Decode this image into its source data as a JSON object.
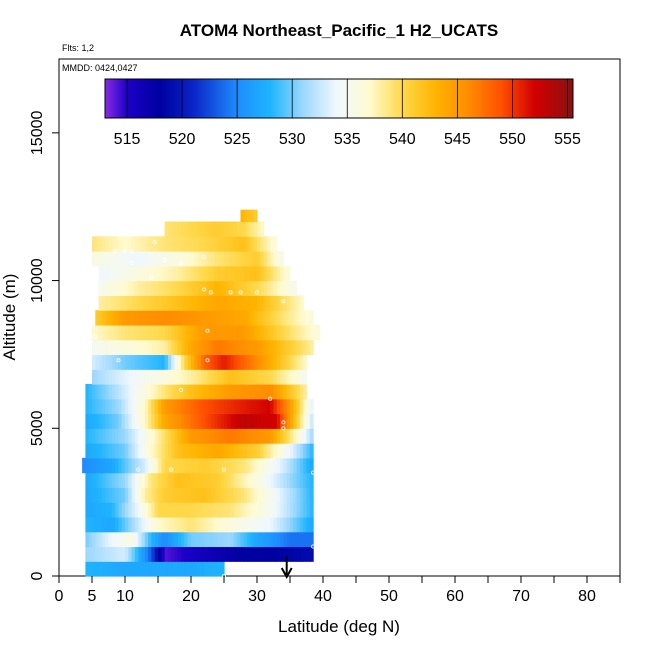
{
  "chart_data": {
    "type": "heatmap",
    "title": "ATOM4 Northeast_Pacific_1 H2_UCATS",
    "flights_text": "Flts: 1,2",
    "mmdd_text": "MMDD: 0424,0427",
    "xlabel": "Latitude (deg N)",
    "ylabel": "Altitude (m)",
    "xlim": [
      0,
      85
    ],
    "ylim": [
      0,
      17500
    ],
    "x_ticks": [
      0,
      5,
      10,
      20,
      30,
      40,
      50,
      60,
      70,
      80
    ],
    "x_minor_ticks": [
      15,
      25,
      35,
      45,
      55,
      65,
      75,
      85
    ],
    "y_ticks": [
      0,
      5000,
      10000,
      15000
    ],
    "colorbar": {
      "min": 513,
      "max": 555.5,
      "ticks": [
        515,
        520,
        525,
        530,
        535,
        540,
        545,
        550,
        555
      ],
      "stops": [
        {
          "v": 513,
          "c": "#8a2be2"
        },
        {
          "v": 515,
          "c": "#1c00c8"
        },
        {
          "v": 518,
          "c": "#0000a0"
        },
        {
          "v": 521,
          "c": "#0a24c8"
        },
        {
          "v": 525,
          "c": "#1e8cff"
        },
        {
          "v": 528,
          "c": "#1eb4ff"
        },
        {
          "v": 531,
          "c": "#9cd8ff"
        },
        {
          "v": 534,
          "c": "#f0f8ff"
        },
        {
          "v": 537,
          "c": "#fffbd0"
        },
        {
          "v": 540,
          "c": "#ffd84a"
        },
        {
          "v": 543,
          "c": "#ffb400"
        },
        {
          "v": 546,
          "c": "#ff8c00"
        },
        {
          "v": 549,
          "c": "#ff5000"
        },
        {
          "v": 552,
          "c": "#d20000"
        },
        {
          "v": 555.5,
          "c": "#8b1010"
        }
      ]
    },
    "arrow_marker": {
      "latitude": 34.5
    },
    "layers": [
      {
        "alt": [
          0,
          500
        ],
        "lat": [
          4,
          25
        ],
        "values": [
          [
            4,
            528
          ],
          [
            10,
            527
          ],
          [
            15,
            527
          ],
          [
            20,
            527
          ],
          [
            25,
            528
          ]
        ]
      },
      {
        "alt": [
          500,
          1000
        ],
        "lat": [
          4,
          38.5
        ],
        "values": [
          [
            4,
            531
          ],
          [
            10,
            533
          ],
          [
            14,
            523
          ],
          [
            16,
            514
          ],
          [
            22,
            516
          ],
          [
            28,
            518
          ],
          [
            33,
            518
          ],
          [
            38.5,
            519
          ]
        ]
      },
      {
        "alt": [
          1000,
          1500
        ],
        "lat": [
          4,
          38.5
        ],
        "values": [
          [
            4,
            530
          ],
          [
            8,
            534
          ],
          [
            11,
            536
          ],
          [
            14,
            528
          ],
          [
            16,
            525
          ],
          [
            20,
            530
          ],
          [
            26,
            531
          ],
          [
            30,
            527
          ],
          [
            35,
            524
          ],
          [
            38.5,
            524
          ]
        ]
      },
      {
        "alt": [
          1500,
          2000
        ],
        "lat": [
          4,
          38.5
        ],
        "values": [
          [
            4,
            528
          ],
          [
            8,
            527
          ],
          [
            11,
            531
          ],
          [
            15,
            537
          ],
          [
            20,
            539
          ],
          [
            26,
            536
          ],
          [
            32,
            534
          ],
          [
            38.5,
            527
          ]
        ]
      },
      {
        "alt": [
          2000,
          2500
        ],
        "lat": [
          4,
          38.5
        ],
        "values": [
          [
            4,
            527
          ],
          [
            8,
            528
          ],
          [
            12,
            534
          ],
          [
            15,
            540
          ],
          [
            20,
            540
          ],
          [
            26,
            539
          ],
          [
            32,
            535
          ],
          [
            38.5,
            528
          ]
        ]
      },
      {
        "alt": [
          2500,
          3000
        ],
        "lat": [
          4,
          38.5
        ],
        "values": [
          [
            4,
            527
          ],
          [
            10,
            530
          ],
          [
            13,
            538
          ],
          [
            16,
            541
          ],
          [
            22,
            542
          ],
          [
            28,
            539
          ],
          [
            34,
            533
          ],
          [
            38.5,
            528
          ]
        ]
      },
      {
        "alt": [
          3000,
          3500
        ],
        "lat": [
          4,
          38.5
        ],
        "values": [
          [
            4,
            527
          ],
          [
            10,
            531
          ],
          [
            14,
            539
          ],
          [
            18,
            542
          ],
          [
            24,
            541
          ],
          [
            30,
            536
          ],
          [
            35,
            531
          ],
          [
            38.5,
            528
          ]
        ]
      },
      {
        "alt": [
          3500,
          4000
        ],
        "lat": [
          3.5,
          38.5
        ],
        "values": [
          [
            3.5,
            525
          ],
          [
            8,
            527
          ],
          [
            13,
            533
          ],
          [
            16,
            540
          ],
          [
            22,
            541
          ],
          [
            28,
            539
          ],
          [
            34,
            533
          ],
          [
            38.5,
            527
          ]
        ]
      },
      {
        "alt": [
          4000,
          4500
        ],
        "lat": [
          4,
          38.5
        ],
        "values": [
          [
            4,
            527
          ],
          [
            10,
            530
          ],
          [
            14,
            537
          ],
          [
            18,
            542
          ],
          [
            24,
            544
          ],
          [
            30,
            541
          ],
          [
            35,
            534
          ],
          [
            38.5,
            528
          ]
        ]
      },
      {
        "alt": [
          4500,
          5000
        ],
        "lat": [
          4,
          38.5
        ],
        "values": [
          [
            4,
            528
          ],
          [
            10,
            531
          ],
          [
            15,
            538
          ],
          [
            20,
            545
          ],
          [
            26,
            547
          ],
          [
            32,
            545
          ],
          [
            36,
            537
          ],
          [
            38.5,
            531
          ]
        ]
      },
      {
        "alt": [
          5000,
          5500
        ],
        "lat": [
          4,
          38.5
        ],
        "values": [
          [
            4,
            527
          ],
          [
            9,
            530
          ],
          [
            13,
            537
          ],
          [
            16,
            544
          ],
          [
            22,
            549
          ],
          [
            28,
            553
          ],
          [
            33,
            552
          ],
          [
            36,
            541
          ],
          [
            38.5,
            532
          ]
        ]
      },
      {
        "alt": [
          5500,
          6000
        ],
        "lat": [
          4,
          38.5
        ],
        "values": [
          [
            4,
            528
          ],
          [
            9,
            531
          ],
          [
            13,
            537
          ],
          [
            16,
            545
          ],
          [
            22,
            549
          ],
          [
            28,
            551
          ],
          [
            32,
            552
          ],
          [
            35,
            545
          ],
          [
            38.5,
            533
          ]
        ]
      },
      {
        "alt": [
          6000,
          6500
        ],
        "lat": [
          4,
          37.5
        ],
        "values": [
          [
            4,
            528
          ],
          [
            9,
            532
          ],
          [
            13,
            536
          ],
          [
            16,
            539
          ],
          [
            20,
            542
          ],
          [
            26,
            545
          ],
          [
            32,
            546
          ],
          [
            37.5,
            538
          ]
        ]
      },
      {
        "alt": [
          6500,
          7000
        ],
        "lat": [
          5,
          37.5
        ],
        "values": [
          [
            5,
            531
          ],
          [
            9,
            533
          ],
          [
            13,
            535
          ],
          [
            16,
            536
          ],
          [
            20,
            538
          ],
          [
            26,
            542
          ],
          [
            32,
            540
          ],
          [
            37.5,
            535
          ]
        ]
      },
      {
        "alt": [
          7000,
          7500
        ],
        "lat": [
          5,
          37.5
        ],
        "values": [
          [
            5,
            533
          ],
          [
            10,
            530
          ],
          [
            16,
            528
          ],
          [
            19,
            540
          ],
          [
            22,
            548
          ],
          [
            25,
            551
          ],
          [
            30,
            546
          ],
          [
            37.5,
            537
          ]
        ]
      },
      {
        "alt": [
          7500,
          8000
        ],
        "lat": [
          5,
          38.5
        ],
        "values": [
          [
            5,
            535
          ],
          [
            10,
            536
          ],
          [
            16,
            538
          ],
          [
            20,
            544
          ],
          [
            24,
            547
          ],
          [
            30,
            545
          ],
          [
            38.5,
            538
          ]
        ]
      },
      {
        "alt": [
          8000,
          8500
        ],
        "lat": [
          5,
          39.5
        ],
        "values": [
          [
            5,
            537
          ],
          [
            10,
            539
          ],
          [
            16,
            540
          ],
          [
            22,
            545
          ],
          [
            28,
            545
          ],
          [
            34,
            540
          ],
          [
            39.5,
            536
          ]
        ]
      },
      {
        "alt": [
          8500,
          9000
        ],
        "lat": [
          5.5,
          38.5
        ],
        "values": [
          [
            5.5,
            541
          ],
          [
            10,
            545
          ],
          [
            16,
            546
          ],
          [
            22,
            545
          ],
          [
            28,
            544
          ],
          [
            34,
            539
          ],
          [
            38.5,
            536
          ]
        ]
      },
      {
        "alt": [
          9000,
          9500
        ],
        "lat": [
          6,
          37
        ],
        "values": [
          [
            6,
            538
          ],
          [
            12,
            540
          ],
          [
            18,
            542
          ],
          [
            24,
            544
          ],
          [
            30,
            543
          ],
          [
            37,
            537
          ]
        ]
      },
      {
        "alt": [
          9500,
          10000
        ],
        "lat": [
          6,
          36
        ],
        "values": [
          [
            6,
            535
          ],
          [
            12,
            538
          ],
          [
            18,
            540
          ],
          [
            24,
            543
          ],
          [
            30,
            540
          ],
          [
            36,
            535
          ]
        ]
      },
      {
        "alt": [
          10000,
          10500
        ],
        "lat": [
          6,
          35
        ],
        "values": [
          [
            6,
            534
          ],
          [
            12,
            536
          ],
          [
            18,
            538
          ],
          [
            24,
            541
          ],
          [
            30,
            542
          ],
          [
            35,
            536
          ]
        ]
      },
      {
        "alt": [
          10500,
          11000
        ],
        "lat": [
          5,
          34
        ],
        "values": [
          [
            5,
            536
          ],
          [
            12,
            534
          ],
          [
            18,
            536
          ],
          [
            24,
            539
          ],
          [
            30,
            541
          ],
          [
            34,
            535
          ]
        ]
      },
      {
        "alt": [
          11000,
          11500
        ],
        "lat": [
          5,
          33
        ],
        "values": [
          [
            5,
            539
          ],
          [
            10,
            537
          ],
          [
            16,
            539
          ],
          [
            22,
            540
          ],
          [
            28,
            542
          ],
          [
            33,
            536
          ]
        ]
      },
      {
        "alt": [
          11500,
          12000
        ],
        "lat": [
          16,
          31
        ],
        "values": [
          [
            16,
            539
          ],
          [
            20,
            540
          ],
          [
            24,
            541
          ],
          [
            28,
            540
          ],
          [
            31,
            537
          ]
        ]
      },
      {
        "alt": [
          12000,
          12400
        ],
        "lat": [
          27.5,
          30
        ],
        "values": [
          [
            27.5,
            543
          ],
          [
            30,
            541
          ]
        ]
      }
    ],
    "sample_points": [
      [
        25,
        0
      ],
      [
        38.5,
        1000
      ],
      [
        38.5,
        3500
      ],
      [
        12,
        3600
      ],
      [
        17,
        3600
      ],
      [
        25,
        3600
      ],
      [
        34,
        5000
      ],
      [
        34,
        5200
      ],
      [
        32,
        6000
      ],
      [
        18.5,
        6300
      ],
      [
        9,
        7300
      ],
      [
        22.5,
        7300
      ],
      [
        22.5,
        8300
      ],
      [
        5.5,
        8100
      ],
      [
        34,
        9300
      ],
      [
        30,
        9600
      ],
      [
        27.5,
        9600
      ],
      [
        26,
        9600
      ],
      [
        23,
        9600
      ],
      [
        22,
        9700
      ],
      [
        14,
        10100
      ],
      [
        16,
        10700
      ],
      [
        18.5,
        10600
      ],
      [
        22,
        10800
      ],
      [
        11,
        10600
      ],
      [
        11,
        11000
      ],
      [
        10,
        11000
      ],
      [
        8.5,
        11000
      ],
      [
        14.5,
        11300
      ]
    ]
  }
}
